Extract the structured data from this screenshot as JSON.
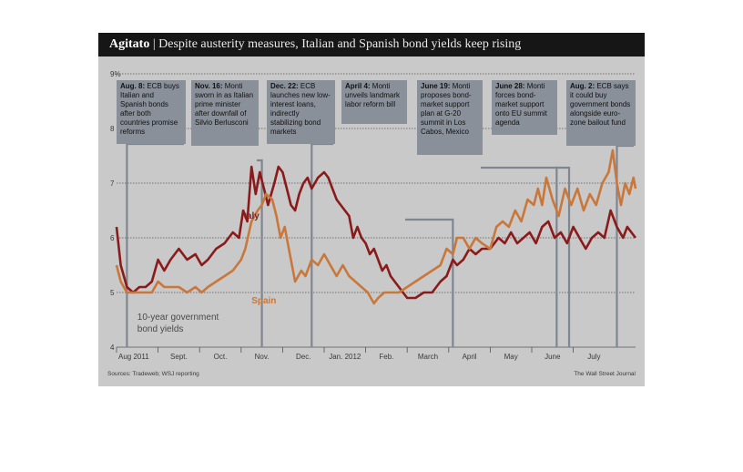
{
  "header": {
    "kicker": "Agitato",
    "separator": "|",
    "headline": "Despite austerity measures, Italian and Spanish bond yields keep rising"
  },
  "footer": {
    "source": "Sources: Tradeweb; WSJ reporting",
    "credit": "The Wall Street Journal"
  },
  "colors": {
    "italy": "#8b1a1a",
    "spain": "#c9773a",
    "note_background": "#8a9099",
    "title_bar": "#161616"
  },
  "annotations": [
    {
      "date": "Aug. 8:",
      "text": "ECB buys Italian and Spanish bonds after both countries promise reforms"
    },
    {
      "date": "Nov. 16:",
      "text": "Monti sworn in as Italian prime minister after downfall of Silvio Berlusconi"
    },
    {
      "date": "Dec. 22:",
      "text": "ECB launches new low-interest loans, indirectly stabilizing bond markets"
    },
    {
      "date": "April 4:",
      "text": "Monti unveils landmark labor reform bill"
    },
    {
      "date": "June 19:",
      "text": "Monti proposes bond-market support plan at G-20 summit in Los Cabos, Mexico"
    },
    {
      "date": "June 28:",
      "text": "Monti forces bond-market support onto EU summit agenda"
    },
    {
      "date": "Aug. 2:",
      "text": "ECB says it could buy government bonds alongside euro-zone bailout fund"
    }
  ],
  "chart_data": {
    "type": "line",
    "title": "Despite austerity measures, Italian and Spanish bond yields keep rising",
    "x_tick_labels": [
      "Aug 2011",
      "Sept.",
      "Oct.",
      "Nov.",
      "Dec.",
      "Jan. 2012",
      "Feb.",
      "March",
      "April",
      "May",
      "June",
      "July"
    ],
    "y_tick_labels": [
      "9%",
      "8",
      "7",
      "6",
      "5",
      "4"
    ],
    "ylim": [
      4,
      9
    ],
    "grid": "horizontal",
    "chart_label": "10-year government bond yields",
    "x_unit": "months since Aug 1 2011",
    "series": [
      {
        "name": "Italy",
        "points": [
          [
            0.0,
            6.2
          ],
          [
            0.1,
            5.5
          ],
          [
            0.25,
            5.1
          ],
          [
            0.4,
            5.0
          ],
          [
            0.55,
            5.1
          ],
          [
            0.7,
            5.1
          ],
          [
            0.85,
            5.2
          ],
          [
            1.0,
            5.6
          ],
          [
            1.15,
            5.4
          ],
          [
            1.3,
            5.6
          ],
          [
            1.5,
            5.8
          ],
          [
            1.7,
            5.6
          ],
          [
            1.9,
            5.7
          ],
          [
            2.05,
            5.5
          ],
          [
            2.2,
            5.6
          ],
          [
            2.4,
            5.8
          ],
          [
            2.6,
            5.9
          ],
          [
            2.8,
            6.1
          ],
          [
            2.95,
            6.0
          ],
          [
            3.05,
            6.5
          ],
          [
            3.15,
            6.3
          ],
          [
            3.25,
            7.3
          ],
          [
            3.35,
            6.8
          ],
          [
            3.45,
            7.2
          ],
          [
            3.55,
            6.9
          ],
          [
            3.65,
            6.6
          ],
          [
            3.8,
            7.0
          ],
          [
            3.9,
            7.3
          ],
          [
            4.0,
            7.2
          ],
          [
            4.1,
            6.9
          ],
          [
            4.2,
            6.6
          ],
          [
            4.3,
            6.5
          ],
          [
            4.4,
            6.8
          ],
          [
            4.5,
            7.0
          ],
          [
            4.6,
            7.1
          ],
          [
            4.7,
            6.9
          ],
          [
            4.85,
            7.1
          ],
          [
            5.0,
            7.2
          ],
          [
            5.1,
            7.1
          ],
          [
            5.2,
            6.9
          ],
          [
            5.3,
            6.7
          ],
          [
            5.4,
            6.6
          ],
          [
            5.5,
            6.5
          ],
          [
            5.6,
            6.4
          ],
          [
            5.7,
            6.0
          ],
          [
            5.8,
            6.2
          ],
          [
            5.9,
            6.0
          ],
          [
            6.0,
            5.9
          ],
          [
            6.1,
            5.7
          ],
          [
            6.2,
            5.8
          ],
          [
            6.3,
            5.6
          ],
          [
            6.4,
            5.4
          ],
          [
            6.5,
            5.5
          ],
          [
            6.6,
            5.3
          ],
          [
            6.7,
            5.2
          ],
          [
            6.8,
            5.1
          ],
          [
            6.9,
            5.0
          ],
          [
            7.0,
            4.9
          ],
          [
            7.2,
            4.9
          ],
          [
            7.4,
            5.0
          ],
          [
            7.6,
            5.0
          ],
          [
            7.8,
            5.2
          ],
          [
            7.95,
            5.3
          ],
          [
            8.1,
            5.6
          ],
          [
            8.2,
            5.5
          ],
          [
            8.35,
            5.6
          ],
          [
            8.5,
            5.8
          ],
          [
            8.65,
            5.7
          ],
          [
            8.8,
            5.8
          ],
          [
            9.0,
            5.8
          ],
          [
            9.2,
            6.0
          ],
          [
            9.35,
            5.9
          ],
          [
            9.5,
            6.1
          ],
          [
            9.65,
            5.9
          ],
          [
            9.8,
            6.0
          ],
          [
            9.95,
            6.1
          ],
          [
            10.1,
            5.9
          ],
          [
            10.25,
            6.2
          ],
          [
            10.4,
            6.3
          ],
          [
            10.55,
            6.0
          ],
          [
            10.7,
            6.1
          ],
          [
            10.85,
            5.9
          ],
          [
            11.0,
            6.2
          ],
          [
            11.15,
            6.0
          ],
          [
            11.3,
            5.8
          ],
          [
            11.45,
            6.0
          ],
          [
            11.6,
            6.1
          ],
          [
            11.75,
            6.0
          ],
          [
            11.9,
            6.5
          ],
          [
            12.05,
            6.2
          ],
          [
            12.2,
            6.0
          ],
          [
            12.3,
            6.2
          ],
          [
            12.4,
            6.1
          ],
          [
            12.5,
            6.0
          ]
        ]
      },
      {
        "name": "Spain",
        "points": [
          [
            0.0,
            5.5
          ],
          [
            0.1,
            5.2
          ],
          [
            0.25,
            5.0
          ],
          [
            0.4,
            5.0
          ],
          [
            0.55,
            5.0
          ],
          [
            0.7,
            5.0
          ],
          [
            0.85,
            5.0
          ],
          [
            1.0,
            5.2
          ],
          [
            1.15,
            5.1
          ],
          [
            1.3,
            5.1
          ],
          [
            1.5,
            5.1
          ],
          [
            1.7,
            5.0
          ],
          [
            1.9,
            5.1
          ],
          [
            2.05,
            5.0
          ],
          [
            2.2,
            5.1
          ],
          [
            2.4,
            5.2
          ],
          [
            2.6,
            5.3
          ],
          [
            2.8,
            5.4
          ],
          [
            3.0,
            5.6
          ],
          [
            3.1,
            5.8
          ],
          [
            3.25,
            6.3
          ],
          [
            3.4,
            6.5
          ],
          [
            3.5,
            6.6
          ],
          [
            3.6,
            6.8
          ],
          [
            3.75,
            6.7
          ],
          [
            3.85,
            6.4
          ],
          [
            3.95,
            6.0
          ],
          [
            4.05,
            6.2
          ],
          [
            4.15,
            5.8
          ],
          [
            4.3,
            5.2
          ],
          [
            4.45,
            5.4
          ],
          [
            4.55,
            5.3
          ],
          [
            4.7,
            5.6
          ],
          [
            4.85,
            5.5
          ],
          [
            5.0,
            5.7
          ],
          [
            5.15,
            5.5
          ],
          [
            5.3,
            5.3
          ],
          [
            5.45,
            5.5
          ],
          [
            5.6,
            5.3
          ],
          [
            5.75,
            5.2
          ],
          [
            5.9,
            5.1
          ],
          [
            6.05,
            5.0
          ],
          [
            6.2,
            4.8
          ],
          [
            6.3,
            4.9
          ],
          [
            6.45,
            5.0
          ],
          [
            6.6,
            5.0
          ],
          [
            6.8,
            5.0
          ],
          [
            7.0,
            5.1
          ],
          [
            7.2,
            5.2
          ],
          [
            7.4,
            5.3
          ],
          [
            7.6,
            5.4
          ],
          [
            7.8,
            5.5
          ],
          [
            7.95,
            5.8
          ],
          [
            8.1,
            5.7
          ],
          [
            8.2,
            6.0
          ],
          [
            8.35,
            6.0
          ],
          [
            8.5,
            5.8
          ],
          [
            8.65,
            6.0
          ],
          [
            8.8,
            5.9
          ],
          [
            9.0,
            5.8
          ],
          [
            9.15,
            6.2
          ],
          [
            9.3,
            6.3
          ],
          [
            9.45,
            6.2
          ],
          [
            9.6,
            6.5
          ],
          [
            9.75,
            6.3
          ],
          [
            9.9,
            6.7
          ],
          [
            10.05,
            6.6
          ],
          [
            10.15,
            6.9
          ],
          [
            10.25,
            6.6
          ],
          [
            10.35,
            7.1
          ],
          [
            10.5,
            6.7
          ],
          [
            10.65,
            6.4
          ],
          [
            10.8,
            6.9
          ],
          [
            10.95,
            6.6
          ],
          [
            11.1,
            6.9
          ],
          [
            11.25,
            6.5
          ],
          [
            11.4,
            6.8
          ],
          [
            11.55,
            6.6
          ],
          [
            11.7,
            7.0
          ],
          [
            11.85,
            7.2
          ],
          [
            11.95,
            7.6
          ],
          [
            12.05,
            7.0
          ],
          [
            12.15,
            6.6
          ],
          [
            12.25,
            7.0
          ],
          [
            12.35,
            6.8
          ],
          [
            12.45,
            7.1
          ],
          [
            12.5,
            6.9
          ]
        ]
      }
    ]
  }
}
